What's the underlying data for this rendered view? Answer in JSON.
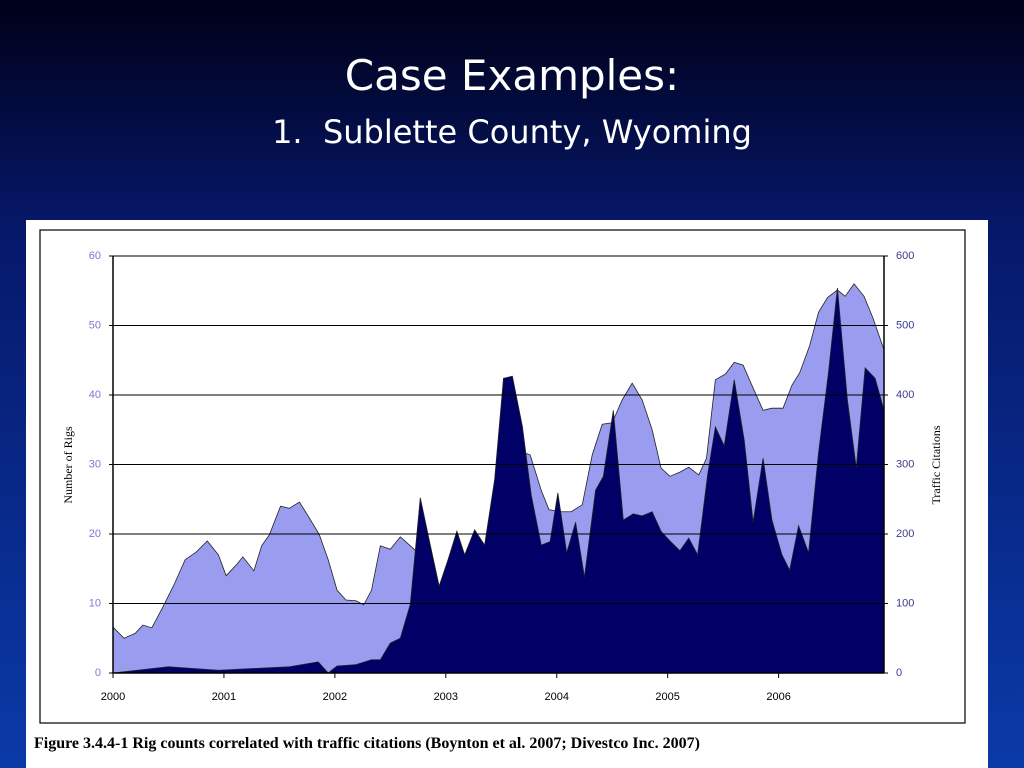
{
  "slide": {
    "title": "Case Examples:",
    "subtitle": "1.  Sublette County, Wyoming"
  },
  "chart_data": {
    "type": "area",
    "caption": "Figure 3.4.4-1 Rig counts correlated with traffic citations (Boynton et al. 2007; Divestco Inc. 2007)",
    "y_label": "Number of Rigs",
    "y2_label": "Traffic Citations",
    "xlim": [
      2000,
      2006.95
    ],
    "xticks": [
      2000,
      2001,
      2002,
      2003,
      2004,
      2005,
      2006
    ],
    "ylim": [
      0,
      60
    ],
    "yticks": [
      0,
      10,
      20,
      30,
      40,
      50,
      60
    ],
    "y2lim": [
      0,
      600
    ],
    "y2ticks": [
      0,
      100,
      200,
      300,
      400,
      500,
      600
    ],
    "grid": true,
    "series": [
      {
        "color": "#9a9cf0",
        "x": [
          2000.0,
          2000.1,
          2000.2,
          2000.27,
          2000.35,
          2000.45,
          2000.55,
          2000.65,
          2000.75,
          2000.85,
          2000.95,
          2001.02,
          2001.12,
          2001.17,
          2001.27,
          2001.34,
          2001.41,
          2001.51,
          2001.59,
          2001.68,
          2001.77,
          2001.86,
          2001.94,
          2002.02,
          2002.1,
          2002.19,
          2002.26,
          2002.33,
          2002.41,
          2002.5,
          2002.59,
          2002.68,
          2002.77,
          2002.95,
          2003.13,
          2003.31,
          2003.49,
          2003.62,
          2003.7,
          2003.76,
          2003.86,
          2003.93,
          2004.03,
          2004.13,
          2004.23,
          2004.32,
          2004.41,
          2004.5,
          2004.59,
          2004.68,
          2004.77,
          2004.86,
          2004.94,
          2005.02,
          2005.11,
          2005.19,
          2005.28,
          2005.35,
          2005.43,
          2005.52,
          2005.6,
          2005.68,
          2005.77,
          2005.86,
          2005.94,
          2006.04,
          2006.12,
          2006.19,
          2006.28,
          2006.36,
          2006.44,
          2006.53,
          2006.6,
          2006.68,
          2006.77,
          2006.85,
          2006.95
        ],
        "values": [
          6.6,
          5.0,
          5.7,
          6.9,
          6.5,
          9.5,
          12.7,
          16.3,
          17.4,
          19.0,
          17.0,
          14.0,
          15.7,
          16.7,
          14.7,
          18.3,
          19.9,
          24.0,
          23.7,
          24.6,
          22.3,
          19.9,
          16.3,
          11.9,
          10.5,
          10.4,
          9.8,
          11.9,
          18.3,
          17.8,
          19.6,
          18.3,
          17,
          12,
          15,
          17,
          20,
          27,
          31.7,
          31.4,
          26.3,
          23.5,
          23.2,
          23.2,
          24.2,
          31.4,
          35.8,
          36.0,
          39.3,
          41.7,
          39.3,
          35.0,
          29.5,
          28.3,
          28.9,
          29.6,
          28.5,
          30.9,
          42.2,
          43.0,
          44.7,
          44.3,
          41.0,
          37.8,
          38.1,
          38.1,
          41.4,
          43.2,
          47.1,
          51.9,
          54.0,
          55.1,
          54.2,
          56.0,
          54.2,
          51.1,
          46.5
        ]
      },
      {
        "color": "#000066",
        "axis": "y2",
        "x": [
          2000.0,
          2000.5,
          2000.95,
          2001.59,
          2001.85,
          2001.94,
          2002.02,
          2002.19,
          2002.33,
          2002.41,
          2002.5,
          2002.59,
          2002.68,
          2002.77,
          2002.86,
          2002.94,
          2003.02,
          2003.1,
          2003.17,
          2003.26,
          2003.35,
          2003.44,
          2003.52,
          2003.6,
          2003.69,
          2003.77,
          2003.86,
          2003.94,
          2004.01,
          2004.09,
          2004.17,
          2004.25,
          2004.35,
          2004.42,
          2004.51,
          2004.6,
          2004.69,
          2004.77,
          2004.86,
          2004.94,
          2005.02,
          2005.11,
          2005.19,
          2005.27,
          2005.36,
          2005.43,
          2005.51,
          2005.6,
          2005.69,
          2005.77,
          2005.86,
          2005.94,
          2006.03,
          2006.1,
          2006.18,
          2006.27,
          2006.36,
          2006.45,
          2006.53,
          2006.62,
          2006.7,
          2006.78,
          2006.87,
          2006.95
        ],
        "values": [
          0,
          9,
          4,
          9,
          16,
          0,
          10,
          12,
          19,
          19,
          43,
          50,
          99,
          252,
          184,
          125,
          163,
          204,
          170,
          206,
          184,
          278,
          424,
          427,
          355,
          256,
          184,
          189,
          259,
          173,
          217,
          138,
          263,
          283,
          378,
          220,
          229,
          226,
          232,
          204,
          190,
          176,
          194,
          170,
          285,
          354,
          327,
          422,
          335,
          217,
          309,
          220,
          170,
          148,
          212,
          173,
          317,
          433,
          554,
          393,
          295,
          439,
          424,
          378
        ]
      }
    ]
  }
}
